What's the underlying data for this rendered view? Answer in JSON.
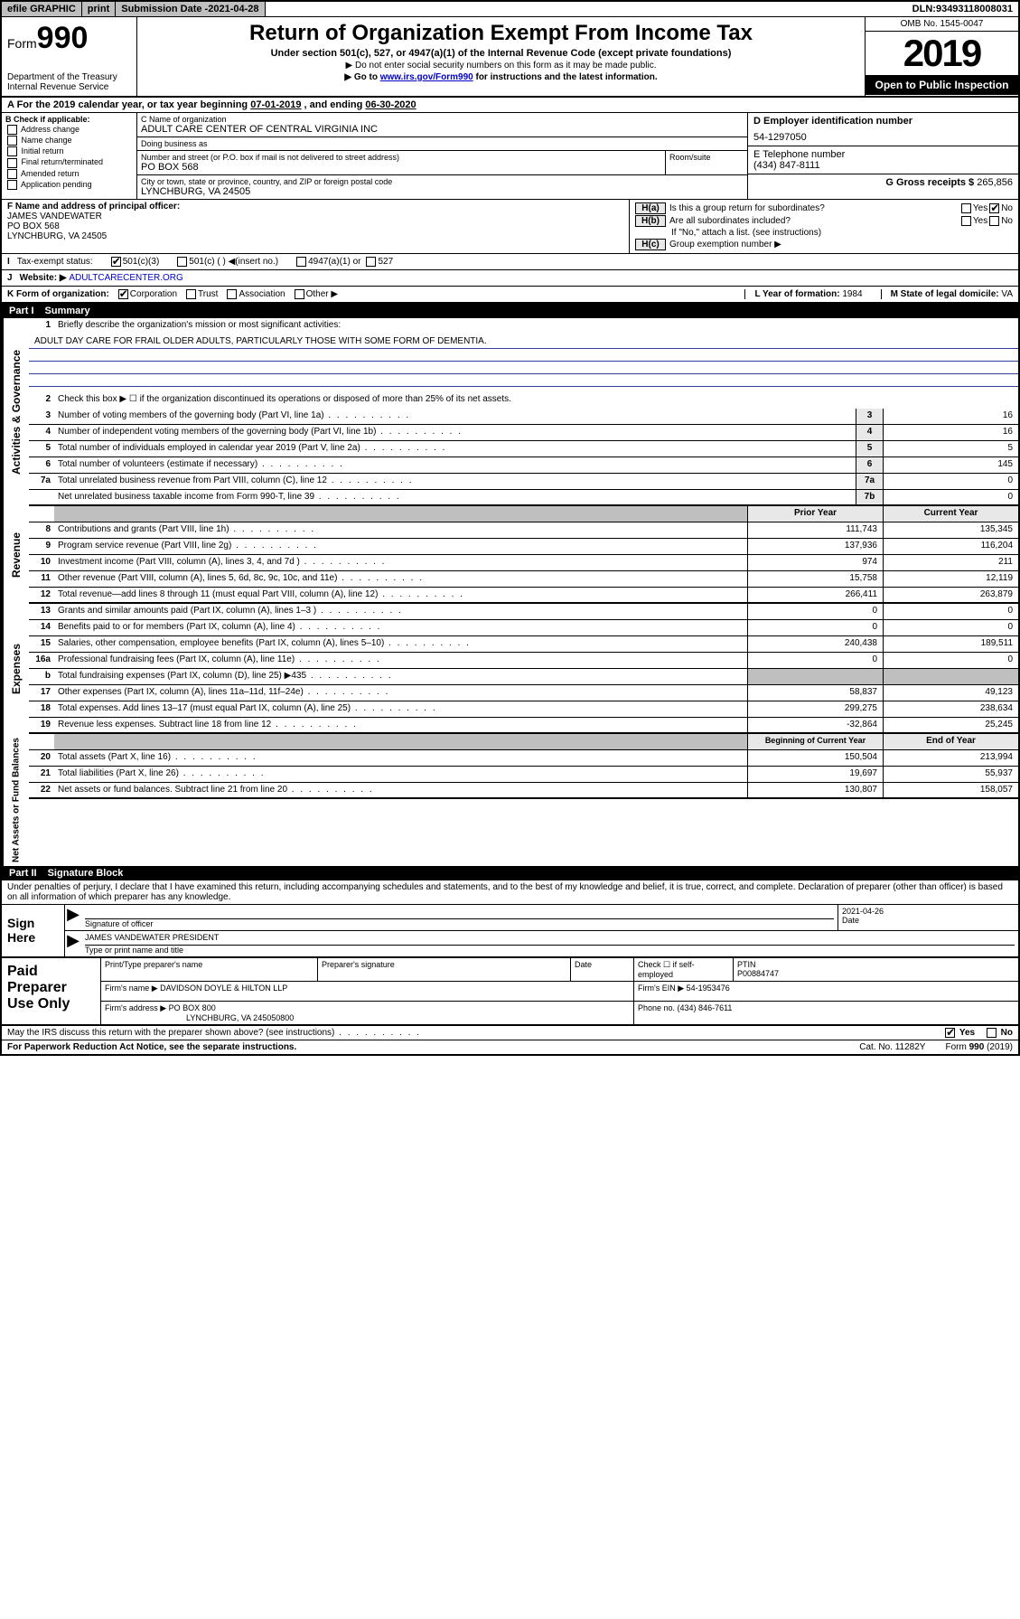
{
  "topbar": {
    "efile": "efile GRAPHIC",
    "print": "print",
    "subdate_label": "Submission Date - ",
    "subdate": "2021-04-28",
    "dln_label": "DLN: ",
    "dln": "93493118008031"
  },
  "header": {
    "form_prefix": "Form",
    "form_num": "990",
    "dept": "Department of the Treasury\nInternal Revenue Service",
    "title": "Return of Organization Exempt From Income Tax",
    "subtitle": "Under section 501(c), 527, or 4947(a)(1) of the Internal Revenue Code (except private foundations)",
    "note1": "▶ Do not enter social security numbers on this form as it may be made public.",
    "note2_pre": "▶ Go to ",
    "note2_link": "www.irs.gov/Form990",
    "note2_post": " for instructions and the latest information.",
    "omb": "OMB No. 1545-0047",
    "year": "2019",
    "open": "Open to Public Inspection"
  },
  "period": {
    "prefix": "A   For the 2019 calendar year, or tax year beginning ",
    "start": "07-01-2019",
    "mid": " , and ending ",
    "end": "06-30-2020"
  },
  "boxB": {
    "label": "B Check if applicable:",
    "items": [
      "Address change",
      "Name change",
      "Initial return",
      "Final return/terminated",
      "Amended return",
      "Application pending"
    ]
  },
  "boxC": {
    "name_label": "C Name of organization",
    "name": "ADULT CARE CENTER OF CENTRAL VIRGINIA INC",
    "dba_label": "Doing business as",
    "dba": "",
    "addr_label": "Number and street (or P.O. box if mail is not delivered to street address)",
    "room_label": "Room/suite",
    "addr": "PO BOX 568",
    "city_label": "City or town, state or province, country, and ZIP or foreign postal code",
    "city": "LYNCHBURG, VA  24505"
  },
  "boxD": {
    "label": "D Employer identification number",
    "val": "54-1297050"
  },
  "boxE": {
    "label": "E Telephone number",
    "val": "(434) 847-8111"
  },
  "boxG": {
    "label": "G Gross receipts $ ",
    "val": "265,856"
  },
  "boxF": {
    "label": "F  Name and address of principal officer:",
    "name": "JAMES VANDEWATER",
    "addr1": "PO BOX 568",
    "addr2": "LYNCHBURG, VA  24505"
  },
  "boxH": {
    "a_label": "Is this a group return for subordinates?",
    "b_label": "Are all subordinates included?",
    "b_note": "If \"No,\" attach a list. (see instructions)",
    "c_label": "Group exemption number ▶"
  },
  "lineI": {
    "label": "Tax-exempt status:",
    "opt1": "501(c)(3)",
    "opt2": "501(c) (  ) ◀(insert no.)",
    "opt3": "4947(a)(1) or",
    "opt4": "527"
  },
  "lineJ": {
    "label": "Website: ▶",
    "val": "ADULTCARECENTER.ORG"
  },
  "lineK": {
    "label": "K Form of organization:",
    "opts": [
      "Corporation",
      "Trust",
      "Association",
      "Other ▶"
    ],
    "l_label": "L Year of formation: ",
    "l_val": "1984",
    "m_label": "M State of legal domicile: ",
    "m_val": "VA"
  },
  "part1": {
    "num": "Part I",
    "title": "Summary"
  },
  "summary": {
    "q1": "Briefly describe the organization's mission or most significant activities:",
    "mission": "ADULT DAY CARE FOR FRAIL OLDER ADULTS, PARTICULARLY THOSE WITH SOME FORM OF DEMENTIA.",
    "q2": "Check this box ▶ ☐  if the organization discontinued its operations or disposed of more than 25% of its net assets.",
    "rows_gov": [
      {
        "n": "3",
        "d": "Number of voting members of the governing body (Part VI, line 1a)",
        "box": "3",
        "v": "16"
      },
      {
        "n": "4",
        "d": "Number of independent voting members of the governing body (Part VI, line 1b)",
        "box": "4",
        "v": "16"
      },
      {
        "n": "5",
        "d": "Total number of individuals employed in calendar year 2019 (Part V, line 2a)",
        "box": "5",
        "v": "5"
      },
      {
        "n": "6",
        "d": "Total number of volunteers (estimate if necessary)",
        "box": "6",
        "v": "145"
      },
      {
        "n": "7a",
        "d": "Total unrelated business revenue from Part VIII, column (C), line 12",
        "box": "7a",
        "v": "0"
      },
      {
        "n": "",
        "d": "Net unrelated business taxable income from Form 990-T, line 39",
        "box": "7b",
        "v": "0"
      }
    ],
    "col_prior": "Prior Year",
    "col_current": "Current Year",
    "rows_rev": [
      {
        "n": "8",
        "d": "Contributions and grants (Part VIII, line 1h)",
        "p": "111,743",
        "c": "135,345"
      },
      {
        "n": "9",
        "d": "Program service revenue (Part VIII, line 2g)",
        "p": "137,936",
        "c": "116,204"
      },
      {
        "n": "10",
        "d": "Investment income (Part VIII, column (A), lines 3, 4, and 7d )",
        "p": "974",
        "c": "211"
      },
      {
        "n": "11",
        "d": "Other revenue (Part VIII, column (A), lines 5, 6d, 8c, 9c, 10c, and 11e)",
        "p": "15,758",
        "c": "12,119"
      },
      {
        "n": "12",
        "d": "Total revenue—add lines 8 through 11 (must equal Part VIII, column (A), line 12)",
        "p": "266,411",
        "c": "263,879"
      }
    ],
    "rows_exp": [
      {
        "n": "13",
        "d": "Grants and similar amounts paid (Part IX, column (A), lines 1–3 )",
        "p": "0",
        "c": "0"
      },
      {
        "n": "14",
        "d": "Benefits paid to or for members (Part IX, column (A), line 4)",
        "p": "0",
        "c": "0"
      },
      {
        "n": "15",
        "d": "Salaries, other compensation, employee benefits (Part IX, column (A), lines 5–10)",
        "p": "240,438",
        "c": "189,511"
      },
      {
        "n": "16a",
        "d": "Professional fundraising fees (Part IX, column (A), line 11e)",
        "p": "0",
        "c": "0"
      },
      {
        "n": "b",
        "d": "Total fundraising expenses (Part IX, column (D), line 25) ▶435",
        "p": "",
        "c": "",
        "shade": true
      },
      {
        "n": "17",
        "d": "Other expenses (Part IX, column (A), lines 11a–11d, 11f–24e)",
        "p": "58,837",
        "c": "49,123"
      },
      {
        "n": "18",
        "d": "Total expenses. Add lines 13–17 (must equal Part IX, column (A), line 25)",
        "p": "299,275",
        "c": "238,634"
      },
      {
        "n": "19",
        "d": "Revenue less expenses. Subtract line 18 from line 12",
        "p": "-32,864",
        "c": "25,245"
      }
    ],
    "col_begin": "Beginning of Current Year",
    "col_end": "End of Year",
    "rows_net": [
      {
        "n": "20",
        "d": "Total assets (Part X, line 16)",
        "p": "150,504",
        "c": "213,994"
      },
      {
        "n": "21",
        "d": "Total liabilities (Part X, line 26)",
        "p": "19,697",
        "c": "55,937"
      },
      {
        "n": "22",
        "d": "Net assets or fund balances. Subtract line 21 from line 20",
        "p": "130,807",
        "c": "158,057"
      }
    ]
  },
  "sidebars": {
    "gov": "Activities & Governance",
    "rev": "Revenue",
    "exp": "Expenses",
    "net": "Net Assets or Fund Balances"
  },
  "part2": {
    "num": "Part II",
    "title": "Signature Block"
  },
  "sig": {
    "penalty": "Under penalties of perjury, I declare that I have examined this return, including accompanying schedules and statements, and to the best of my knowledge and belief, it is true, correct, and complete. Declaration of preparer (other than officer) is based on all information of which preparer has any knowledge.",
    "sign_here": "Sign Here",
    "sig_label": "Signature of officer",
    "date_label": "Date",
    "date": "2021-04-26",
    "name": "JAMES VANDEWATER  PRESIDENT",
    "name_label": "Type or print name and title"
  },
  "prep": {
    "title": "Paid Preparer Use Only",
    "c1": "Print/Type preparer's name",
    "c2": "Preparer's signature",
    "c3": "Date",
    "c4_label": "Check ☐ if self-employed",
    "c5_label": "PTIN",
    "c5": "P00884747",
    "firm_label": "Firm's name    ▶",
    "firm": "DAVIDSON DOYLE & HILTON LLP",
    "ein_label": "Firm's EIN ▶",
    "ein": "54-1953476",
    "addr_label": "Firm's address ▶",
    "addr": "PO BOX 800",
    "addr2": "LYNCHBURG, VA  245050800",
    "phone_label": "Phone no. ",
    "phone": "(434) 846-7611"
  },
  "footer": {
    "discuss": "May the IRS discuss this return with the preparer shown above? (see instructions)",
    "yes": "Yes",
    "no": "No",
    "pra": "For Paperwork Reduction Act Notice, see the separate instructions.",
    "cat": "Cat. No. 11282Y",
    "form": "Form 990 (2019)"
  },
  "colors": {
    "border": "#000000",
    "link": "#0000cc",
    "shade": "#bfbfbf",
    "rule": "#3040a0"
  }
}
